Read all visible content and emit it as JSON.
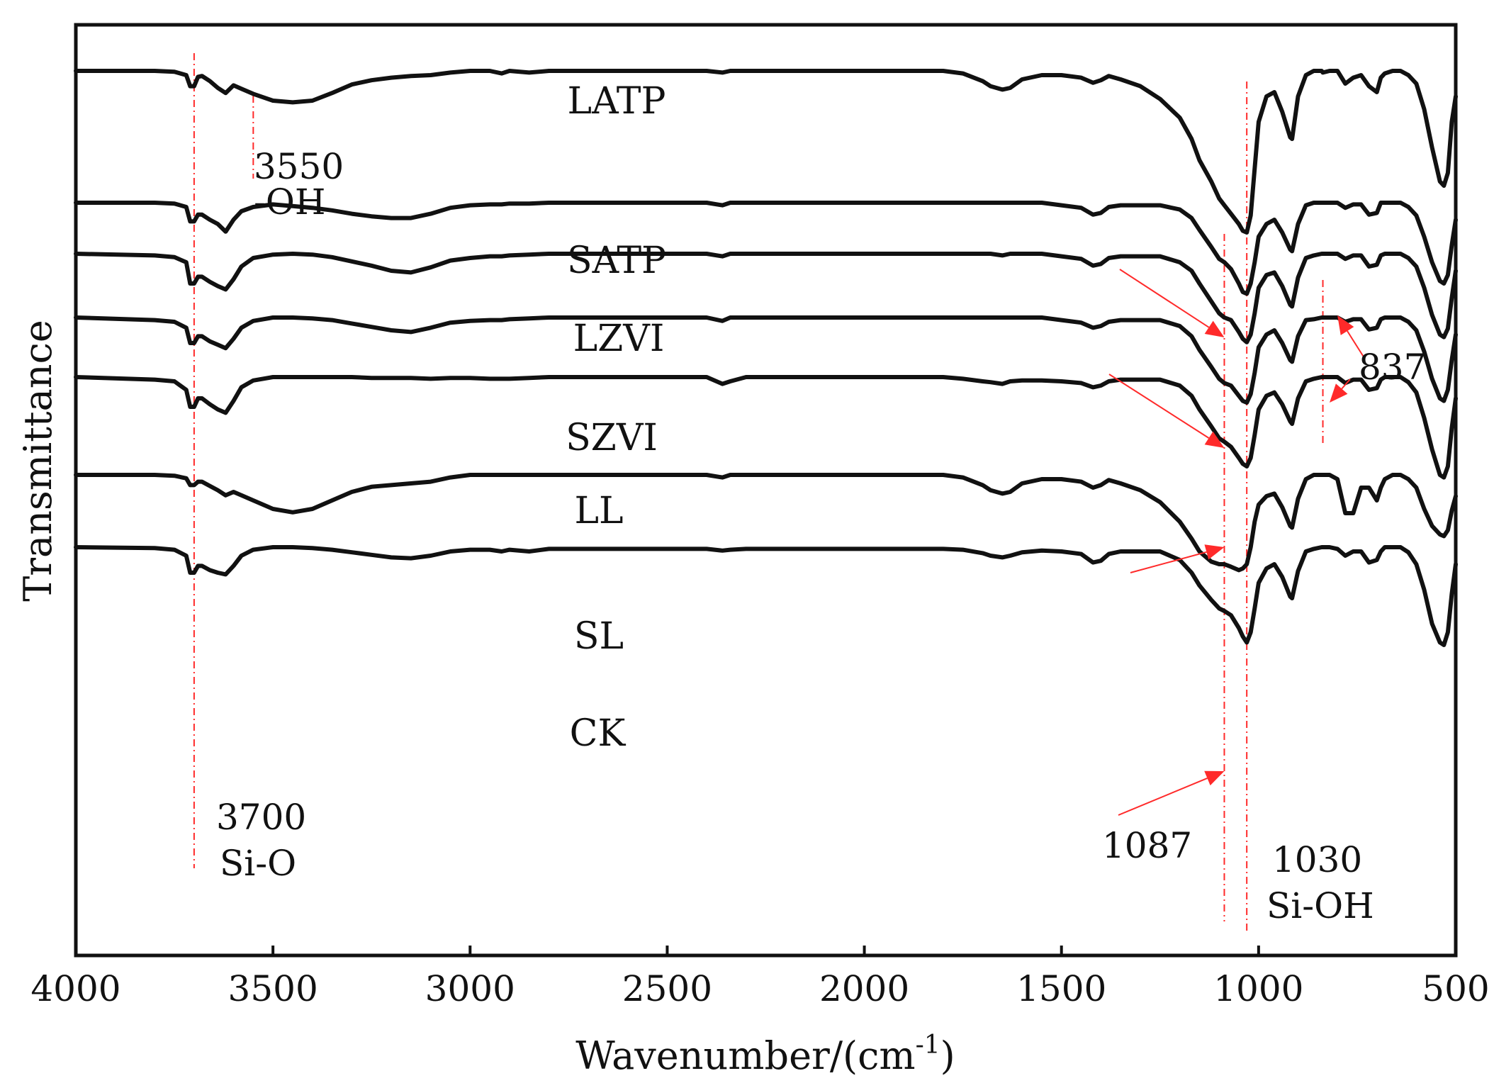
{
  "chart_data": {
    "type": "line",
    "title": "",
    "xlabel": "Wavenumber/(cm",
    "xlabel_sup": "-1",
    "xlabel_close": ")",
    "ylabel": "Transmittance",
    "xlim": [
      4000,
      500
    ],
    "x_reversed": true,
    "x_ticks": [
      4000,
      3500,
      3000,
      2500,
      2000,
      1500,
      1000,
      500
    ],
    "x_tick_labels": [
      "4000",
      "3500",
      "3000",
      "2500",
      "2000",
      "1500",
      "1000",
      "500"
    ],
    "y_ticks_shown": false,
    "grid": false,
    "legend": "none",
    "y_units": "stacked offset transmittance, arbitrary units; each series shown with a vertical offset, baseline near 0, larger values = deeper absorption dip",
    "x": [
      4000,
      3800,
      3750,
      3720,
      3710,
      3700,
      3690,
      3680,
      3660,
      3640,
      3620,
      3600,
      3580,
      3550,
      3500,
      3450,
      3400,
      3350,
      3300,
      3250,
      3200,
      3150,
      3100,
      3050,
      3000,
      2950,
      2920,
      2900,
      2850,
      2800,
      2700,
      2600,
      2500,
      2400,
      2360,
      2340,
      2300,
      2200,
      2000,
      1800,
      1750,
      1700,
      1680,
      1650,
      1630,
      1600,
      1550,
      1500,
      1450,
      1420,
      1400,
      1380,
      1350,
      1300,
      1250,
      1200,
      1170,
      1150,
      1120,
      1100,
      1087,
      1070,
      1050,
      1040,
      1030,
      1020,
      1010,
      1000,
      980,
      960,
      940,
      920,
      915,
      900,
      880,
      860,
      840,
      837,
      820,
      800,
      780,
      760,
      740,
      720,
      700,
      690,
      680,
      660,
      640,
      620,
      600,
      580,
      560,
      540,
      530,
      520,
      510,
      500
    ],
    "series": [
      {
        "name": "LATP",
        "offset": 0,
        "values": [
          0.0,
          0.0,
          0.01,
          0.05,
          0.18,
          0.18,
          0.07,
          0.06,
          0.12,
          0.2,
          0.26,
          0.17,
          0.21,
          0.27,
          0.35,
          0.37,
          0.35,
          0.26,
          0.16,
          0.11,
          0.08,
          0.06,
          0.05,
          0.02,
          0.0,
          0.0,
          0.03,
          0.0,
          0.02,
          0.0,
          0.0,
          0.0,
          0.0,
          0.0,
          0.02,
          0.0,
          0.0,
          0.0,
          0.0,
          0.0,
          0.03,
          0.12,
          0.18,
          0.22,
          0.2,
          0.1,
          0.05,
          0.05,
          0.08,
          0.14,
          0.11,
          0.06,
          0.1,
          0.18,
          0.33,
          0.55,
          0.8,
          1.05,
          1.3,
          1.5,
          1.58,
          1.68,
          1.8,
          1.88,
          1.9,
          1.7,
          1.15,
          0.6,
          0.3,
          0.25,
          0.48,
          0.78,
          0.8,
          0.3,
          0.05,
          0.0,
          0.0,
          0.02,
          0.0,
          0.0,
          0.15,
          0.08,
          0.05,
          0.18,
          0.25,
          0.08,
          0.03,
          0.0,
          0.0,
          0.05,
          0.15,
          0.45,
          0.9,
          1.3,
          1.35,
          1.2,
          0.6,
          0.3
        ]
      },
      {
        "name": "SATP",
        "offset": 1.55,
        "values": [
          0.0,
          0.0,
          0.01,
          0.05,
          0.22,
          0.22,
          0.14,
          0.14,
          0.2,
          0.25,
          0.34,
          0.2,
          0.1,
          0.05,
          0.02,
          0.04,
          0.06,
          0.09,
          0.13,
          0.16,
          0.18,
          0.18,
          0.13,
          0.06,
          0.03,
          0.02,
          0.02,
          0.01,
          0.01,
          0.0,
          0.0,
          0.0,
          0.0,
          0.0,
          0.03,
          0.0,
          0.0,
          0.0,
          0.0,
          0.0,
          0.0,
          0.0,
          0.0,
          0.0,
          0.0,
          0.0,
          0.0,
          0.03,
          0.06,
          0.14,
          0.12,
          0.05,
          0.03,
          0.03,
          0.03,
          0.08,
          0.18,
          0.32,
          0.52,
          0.66,
          0.7,
          0.78,
          0.95,
          1.05,
          1.07,
          0.95,
          0.7,
          0.4,
          0.25,
          0.2,
          0.35,
          0.55,
          0.57,
          0.25,
          0.03,
          0.0,
          0.0,
          0.0,
          0.0,
          0.0,
          0.06,
          0.02,
          0.02,
          0.14,
          0.12,
          0.0,
          0.0,
          0.0,
          0.0,
          0.05,
          0.15,
          0.4,
          0.7,
          0.92,
          0.95,
          0.85,
          0.5,
          0.2
        ]
      },
      {
        "name": "LZVI",
        "offset": 2.15,
        "values": [
          0.0,
          0.02,
          0.04,
          0.1,
          0.35,
          0.35,
          0.27,
          0.27,
          0.33,
          0.38,
          0.42,
          0.3,
          0.15,
          0.05,
          0.01,
          0.0,
          0.01,
          0.04,
          0.09,
          0.14,
          0.2,
          0.22,
          0.16,
          0.08,
          0.05,
          0.03,
          0.03,
          0.02,
          0.01,
          0.0,
          0.0,
          0.0,
          0.0,
          0.0,
          0.03,
          0.0,
          0.0,
          0.0,
          0.0,
          0.0,
          0.0,
          0.0,
          0.0,
          0.02,
          0.0,
          0.0,
          0.0,
          0.03,
          0.06,
          0.14,
          0.12,
          0.05,
          0.03,
          0.03,
          0.03,
          0.1,
          0.2,
          0.35,
          0.56,
          0.7,
          0.75,
          0.78,
          0.92,
          1.0,
          1.04,
          0.95,
          0.7,
          0.4,
          0.25,
          0.22,
          0.38,
          0.6,
          0.62,
          0.28,
          0.05,
          0.02,
          0.0,
          0.0,
          0.0,
          0.0,
          0.06,
          0.02,
          0.02,
          0.15,
          0.13,
          0.02,
          0.0,
          0.0,
          0.0,
          0.05,
          0.15,
          0.4,
          0.72,
          0.95,
          0.98,
          0.88,
          0.52,
          0.2
        ]
      },
      {
        "name": "SZVI",
        "offset": 2.9,
        "values": [
          0.0,
          0.03,
          0.05,
          0.12,
          0.3,
          0.3,
          0.22,
          0.22,
          0.28,
          0.32,
          0.36,
          0.25,
          0.12,
          0.04,
          0.0,
          0.0,
          0.01,
          0.03,
          0.07,
          0.11,
          0.15,
          0.17,
          0.12,
          0.06,
          0.04,
          0.03,
          0.03,
          0.02,
          0.01,
          0.0,
          0.0,
          0.0,
          0.0,
          0.0,
          0.04,
          0.0,
          0.0,
          0.0,
          0.0,
          0.0,
          0.0,
          0.0,
          0.0,
          0.0,
          0.0,
          0.0,
          0.0,
          0.03,
          0.06,
          0.12,
          0.1,
          0.05,
          0.03,
          0.03,
          0.03,
          0.1,
          0.22,
          0.38,
          0.58,
          0.72,
          0.77,
          0.8,
          0.92,
          0.98,
          1.0,
          0.9,
          0.65,
          0.35,
          0.2,
          0.15,
          0.3,
          0.5,
          0.52,
          0.22,
          0.03,
          0.02,
          0.0,
          0.0,
          0.0,
          0.0,
          0.05,
          0.02,
          0.02,
          0.14,
          0.12,
          0.02,
          0.0,
          0.0,
          0.0,
          0.05,
          0.15,
          0.4,
          0.72,
          0.95,
          0.98,
          0.85,
          0.5,
          0.2
        ]
      },
      {
        "name": "LL",
        "offset": 3.6,
        "values": [
          0.0,
          0.03,
          0.05,
          0.15,
          0.35,
          0.35,
          0.25,
          0.25,
          0.32,
          0.38,
          0.42,
          0.28,
          0.12,
          0.04,
          0.0,
          0.0,
          0.0,
          0.0,
          0.0,
          0.01,
          0.01,
          0.01,
          0.02,
          0.01,
          0.01,
          0.02,
          0.02,
          0.02,
          0.01,
          0.0,
          0.0,
          0.0,
          0.0,
          0.0,
          0.08,
          0.05,
          0.0,
          0.0,
          0.0,
          0.0,
          0.02,
          0.05,
          0.06,
          0.08,
          0.05,
          0.04,
          0.04,
          0.05,
          0.07,
          0.12,
          0.1,
          0.05,
          0.03,
          0.03,
          0.03,
          0.1,
          0.22,
          0.38,
          0.58,
          0.72,
          0.76,
          0.82,
          0.95,
          1.02,
          1.05,
          0.95,
          0.68,
          0.38,
          0.22,
          0.18,
          0.32,
          0.52,
          0.55,
          0.25,
          0.05,
          0.02,
          0.0,
          0.0,
          0.0,
          0.0,
          0.07,
          0.03,
          0.03,
          0.15,
          0.13,
          0.03,
          0.0,
          0.0,
          0.0,
          0.06,
          0.18,
          0.48,
          0.85,
          1.15,
          1.18,
          1.05,
          0.6,
          0.25
        ]
      },
      {
        "name": "SL",
        "offset": 4.75,
        "values": [
          0.0,
          0.0,
          0.01,
          0.04,
          0.12,
          0.12,
          0.08,
          0.08,
          0.13,
          0.18,
          0.24,
          0.2,
          0.24,
          0.3,
          0.4,
          0.44,
          0.4,
          0.3,
          0.2,
          0.14,
          0.12,
          0.1,
          0.08,
          0.03,
          0.0,
          0.0,
          0.0,
          0.0,
          0.0,
          0.0,
          0.0,
          0.0,
          0.0,
          0.0,
          0.03,
          0.0,
          0.0,
          0.0,
          0.0,
          0.0,
          0.03,
          0.12,
          0.18,
          0.22,
          0.2,
          0.1,
          0.05,
          0.05,
          0.08,
          0.15,
          0.12,
          0.06,
          0.1,
          0.18,
          0.32,
          0.55,
          0.75,
          0.9,
          1.02,
          1.05,
          1.05,
          1.08,
          1.12,
          1.1,
          1.05,
          0.85,
          0.55,
          0.35,
          0.25,
          0.22,
          0.38,
          0.6,
          0.62,
          0.28,
          0.05,
          0.0,
          0.0,
          0.0,
          0.0,
          0.05,
          0.45,
          0.45,
          0.15,
          0.15,
          0.3,
          0.15,
          0.05,
          0.0,
          0.0,
          0.05,
          0.15,
          0.4,
          0.6,
          0.7,
          0.72,
          0.65,
          0.42,
          0.25
        ]
      },
      {
        "name": "CK",
        "offset": 5.6,
        "values": [
          0.0,
          0.01,
          0.03,
          0.1,
          0.3,
          0.3,
          0.22,
          0.22,
          0.27,
          0.3,
          0.32,
          0.22,
          0.1,
          0.03,
          0.0,
          0.0,
          0.01,
          0.03,
          0.06,
          0.09,
          0.12,
          0.13,
          0.1,
          0.05,
          0.03,
          0.03,
          0.05,
          0.03,
          0.05,
          0.02,
          0.02,
          0.02,
          0.02,
          0.02,
          0.04,
          0.03,
          0.02,
          0.02,
          0.02,
          0.02,
          0.03,
          0.07,
          0.1,
          0.12,
          0.1,
          0.06,
          0.04,
          0.05,
          0.08,
          0.18,
          0.16,
          0.08,
          0.05,
          0.05,
          0.05,
          0.15,
          0.3,
          0.45,
          0.62,
          0.72,
          0.75,
          0.8,
          0.95,
          1.05,
          1.12,
          1.0,
          0.72,
          0.42,
          0.25,
          0.2,
          0.35,
          0.58,
          0.6,
          0.28,
          0.05,
          0.02,
          0.0,
          0.0,
          0.0,
          0.02,
          0.1,
          0.05,
          0.05,
          0.18,
          0.15,
          0.05,
          0.0,
          0.0,
          0.0,
          0.06,
          0.2,
          0.5,
          0.9,
          1.12,
          1.15,
          1.0,
          0.55,
          0.2
        ]
      }
    ],
    "annotations": [
      {
        "text": "3550",
        "x": 3550,
        "kind": "peak-label"
      },
      {
        "text": "-OH",
        "x": 3550,
        "kind": "peak-label"
      },
      {
        "text": "3700",
        "x": 3700,
        "kind": "peak-label"
      },
      {
        "text": "Si-O",
        "x": 3700,
        "kind": "peak-label"
      },
      {
        "text": "1087",
        "x": 1087,
        "kind": "peak-label"
      },
      {
        "text": "1030",
        "x": 1030,
        "kind": "peak-label"
      },
      {
        "text": "Si-OH",
        "x": 1030,
        "kind": "peak-label"
      },
      {
        "text": "837",
        "x": 837,
        "kind": "peak-label"
      }
    ],
    "reference_lines": [
      3700,
      3550,
      1087,
      1030,
      837
    ],
    "colors": {
      "curve": "#111111",
      "annotation": "#ff2a2a",
      "axis": "#111111"
    }
  }
}
